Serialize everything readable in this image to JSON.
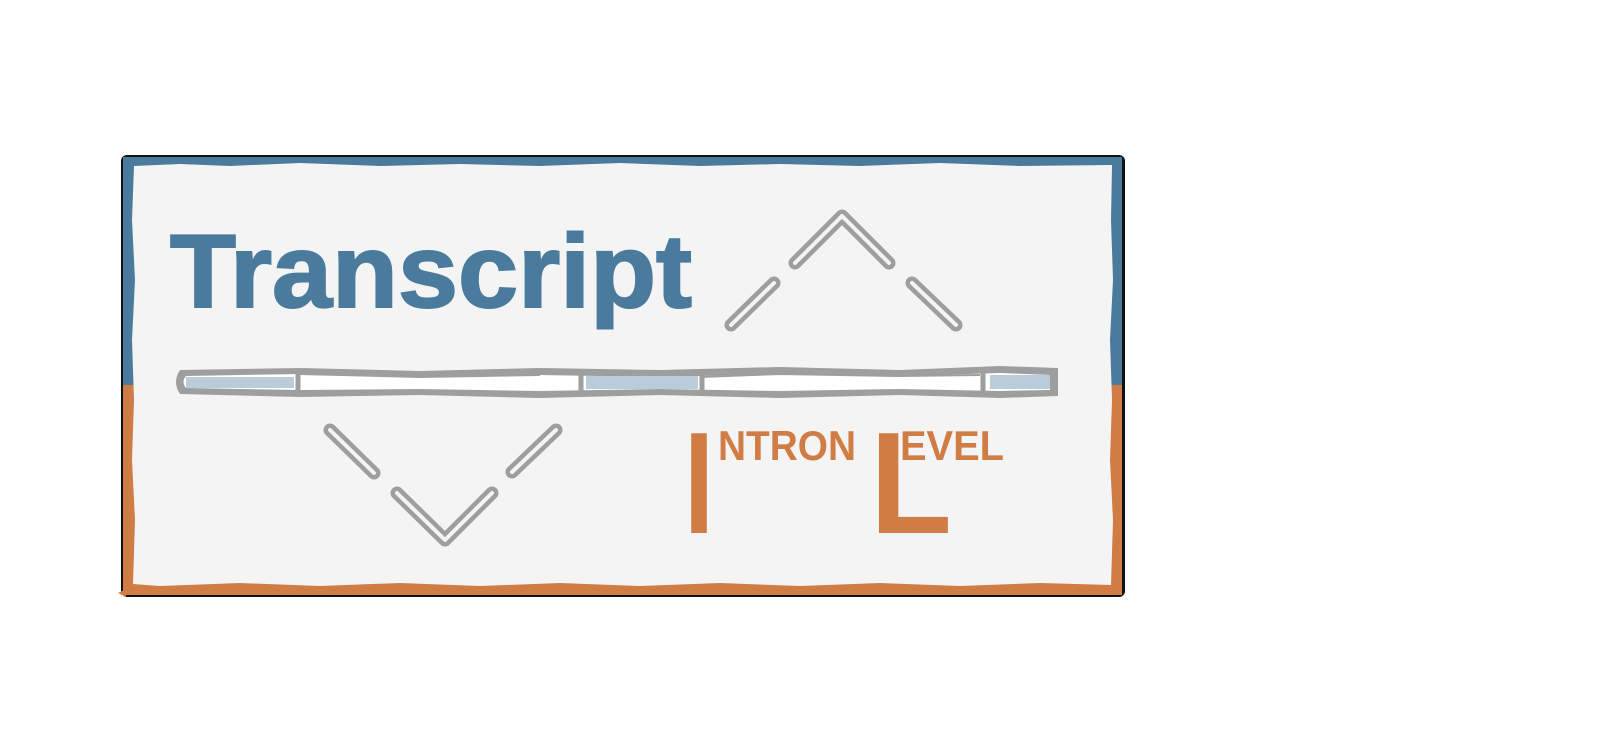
{
  "logo": {
    "title": "Transcript",
    "subtitle": {
      "word1_initial": "I",
      "word1_rest": "NTRON",
      "word2_initial": "L",
      "word2_rest": "EVEL"
    },
    "icons": [
      "splice-junction-up-icon",
      "splice-junction-down-icon",
      "gene-track-icon"
    ]
  },
  "colors": {
    "blue": "#4a7b9d",
    "orange": "#d07c45",
    "panel": "#f4f4f4",
    "gray": "#9e9e9e",
    "exon_fill": "#b8ccda",
    "frame": "#111111"
  }
}
